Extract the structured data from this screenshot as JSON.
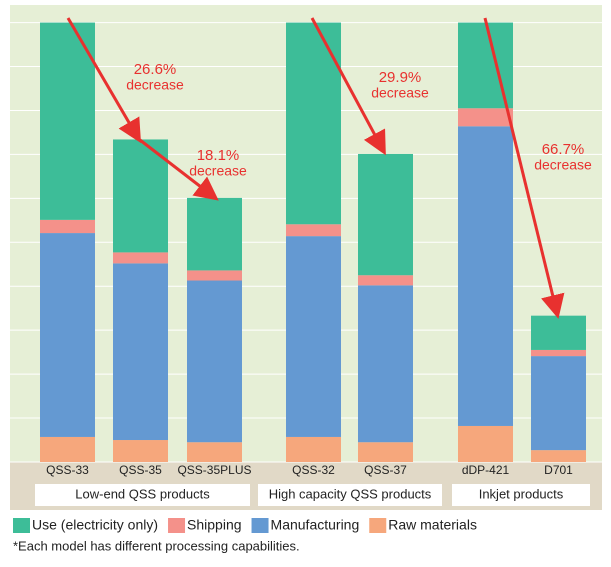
{
  "chart_data": {
    "type": "bar",
    "stacked": true,
    "categories": [
      "QSS-33",
      "QSS-35",
      "QSS-35PLUS",
      "QSS-32",
      "QSS-37",
      "dDP-421",
      "D701"
    ],
    "groups": [
      "Low-end QSS products",
      "High capacity QSS products",
      "Inkjet products"
    ],
    "series": [
      {
        "name": "Raw materials",
        "color": "#f6a77c",
        "values": [
          5.7,
          5.0,
          4.5,
          5.7,
          4.5,
          8.2,
          2.7
        ]
      },
      {
        "name": "Manufacturing",
        "color": "#6499d2",
        "values": [
          46.4,
          40.2,
          36.8,
          45.7,
          35.7,
          68.2,
          21.4
        ]
      },
      {
        "name": "Shipping",
        "color": "#f4918a",
        "values": [
          3.0,
          2.5,
          2.3,
          2.7,
          2.3,
          4.1,
          1.4
        ]
      },
      {
        "name": "Use (electricity only)",
        "color": "#3dbd98",
        "values": [
          44.9,
          25.7,
          16.5,
          45.9,
          27.6,
          19.5,
          7.8
        ]
      }
    ],
    "legend_order": [
      3,
      2,
      1,
      0
    ],
    "annotations": [
      {
        "text": "26.6%",
        "sub": "decrease"
      },
      {
        "text": "18.1%",
        "sub": "decrease"
      },
      {
        "text": "29.9%",
        "sub": "decrease"
      },
      {
        "text": "66.7%",
        "sub": "decrease"
      }
    ],
    "footnote": "*Each model has different processing capabilities.",
    "ylim": [
      0,
      104
    ],
    "yticks": [
      0,
      10,
      20,
      30,
      40,
      50,
      60,
      70,
      80,
      90,
      100
    ],
    "grid": true
  }
}
